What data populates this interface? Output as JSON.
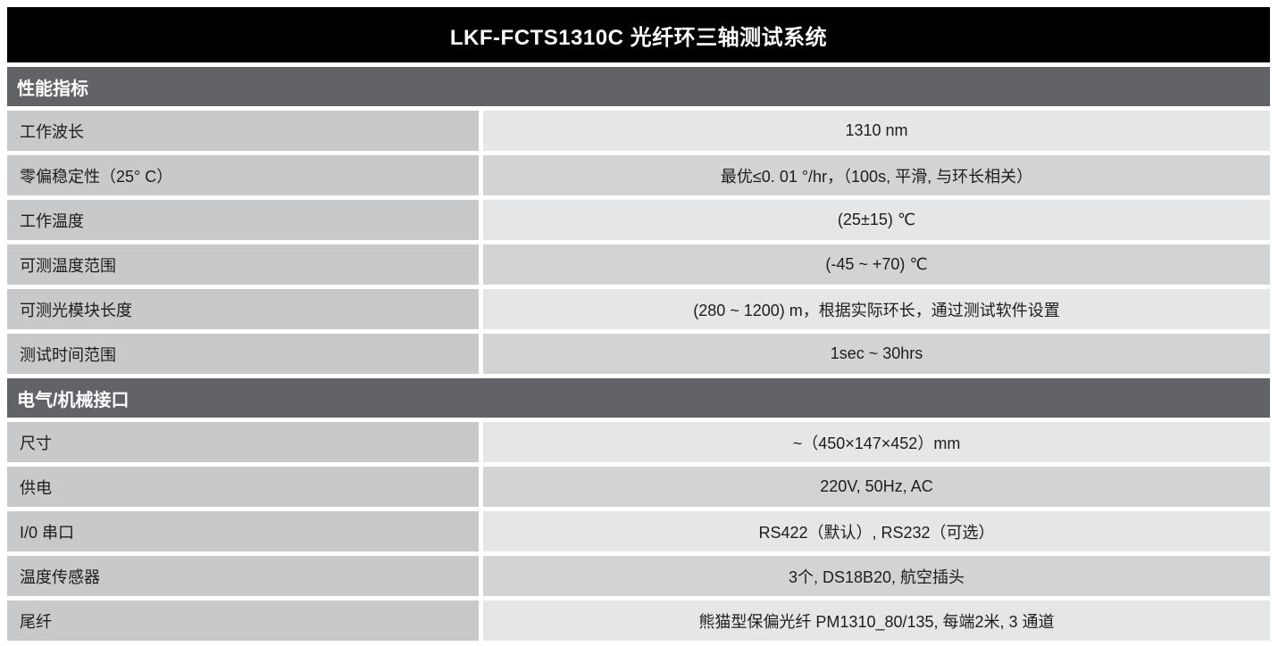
{
  "title": "LKF-FCTS1310C 光纤环三轴测试系统",
  "colors": {
    "title_bar_bg": "#000000",
    "title_text": "#ffffff",
    "section_bar_bg": "#626366",
    "section_text": "#ffffff",
    "label_cell_bg": "#c8c9ca",
    "value_cell_bg_light": "#e5e6e7",
    "value_cell_bg_dark": "#d2d3d5",
    "body_text": "#1d1d1d"
  },
  "sections": [
    {
      "heading": "性能指标",
      "rows": [
        {
          "label": "工作波长",
          "value": "1310 nm"
        },
        {
          "label": "零偏稳定性（25° C）",
          "value": "最优≤0. 01 °/hr，（100s, 平滑, 与环长相关）"
        },
        {
          "label": "工作温度",
          "value": "(25±15) ℃"
        },
        {
          "label": "可测温度范围",
          "value": "(-45 ~ +70) ℃"
        },
        {
          "label": "可测光模块长度",
          "value": "(280 ~ 1200) m，根据实际环长，通过测试软件设置"
        },
        {
          "label": "测试时间范围",
          "value": "1sec ~ 30hrs"
        }
      ]
    },
    {
      "heading": "电气/机械接口",
      "rows": [
        {
          "label": "尺寸",
          "value": "~（450×147×452）mm"
        },
        {
          "label": "供电",
          "value": "220V, 50Hz, AC"
        },
        {
          "label": "I/0 串口",
          "value": "RS422（默认）, RS232（可选）"
        },
        {
          "label": "温度传感器",
          "value": "3个, DS18B20, 航空插头"
        },
        {
          "label": "尾纤",
          "value": "熊猫型保偏光纤 PM1310_80/135, 每端2米, 3 通道"
        }
      ]
    }
  ]
}
